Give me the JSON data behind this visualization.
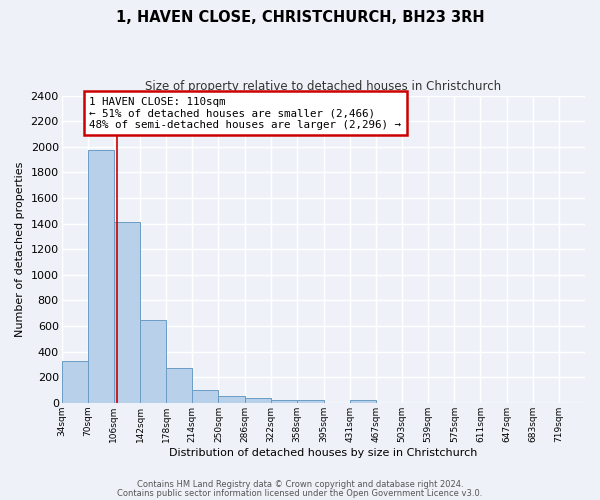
{
  "title": "1, HAVEN CLOSE, CHRISTCHURCH, BH23 3RH",
  "subtitle": "Size of property relative to detached houses in Christchurch",
  "xlabel": "Distribution of detached houses by size in Christchurch",
  "ylabel": "Number of detached properties",
  "bar_edges": [
    34,
    70,
    106,
    142,
    178,
    214,
    250,
    286,
    322,
    358,
    395,
    431,
    467,
    503,
    539,
    575,
    611,
    647,
    683,
    719,
    755
  ],
  "bar_heights": [
    325,
    1975,
    1410,
    650,
    275,
    100,
    50,
    35,
    25,
    20,
    0,
    20,
    0,
    0,
    0,
    0,
    0,
    0,
    0,
    0
  ],
  "bar_color": "#b8d0ea",
  "bar_edge_color": "#6a9cc4",
  "property_line_x": 110,
  "property_line_color": "#cc0000",
  "annotation_text": "1 HAVEN CLOSE: 110sqm\n← 51% of detached houses are smaller (2,466)\n48% of semi-detached houses are larger (2,296) →",
  "annotation_box_facecolor": "#ffffff",
  "annotation_box_edgecolor": "#cc0000",
  "ylim": [
    0,
    2400
  ],
  "yticks": [
    0,
    200,
    400,
    600,
    800,
    1000,
    1200,
    1400,
    1600,
    1800,
    2000,
    2200,
    2400
  ],
  "bg_color": "#eef2f8",
  "grid_color": "#ffffff",
  "footer_line1": "Contains HM Land Registry data © Crown copyright and database right 2024.",
  "footer_line2": "Contains public sector information licensed under the Open Government Licence v3.0."
}
